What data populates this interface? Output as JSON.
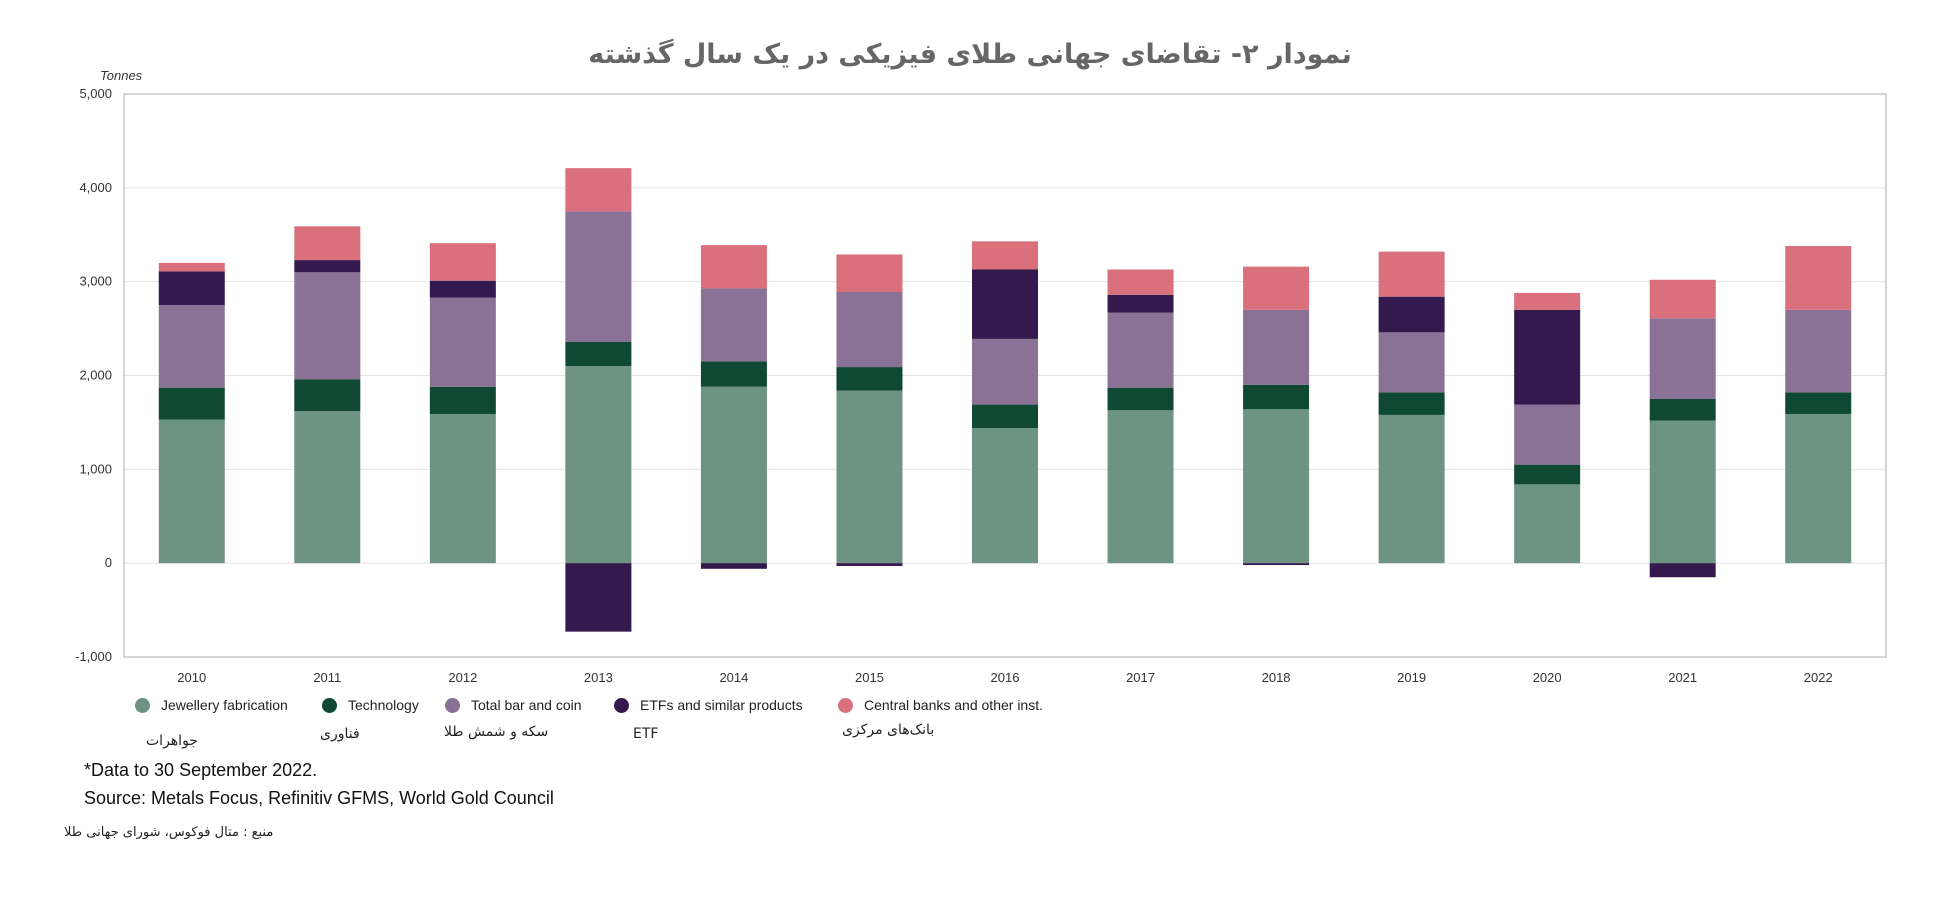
{
  "colors": {
    "jewellery": "#6d9383",
    "technology": "#0f4833",
    "bar_coin": "#8a7196",
    "etf": "#33194d",
    "central_banks": "#d9707c",
    "grid": "#e4e4e4",
    "axis": "#bbbbbb"
  },
  "chart_data": {
    "type": "bar",
    "stacked": true,
    "title": "نمودار ۲- تقاضای جهانی طلای فیزیکی در یک سال گذشته",
    "ylabel": "Tonnes",
    "ylim": [
      -1000,
      5000
    ],
    "yticks": [
      5000,
      4000,
      3000,
      2000,
      1000,
      0,
      -1000
    ],
    "ytick_labels": [
      "5,000",
      "4,000",
      "3,000",
      "2,000",
      "1,000",
      "0",
      "-1,000"
    ],
    "grid": true,
    "legend_position": "bottom-left",
    "categories": [
      "2010",
      "2011",
      "2012",
      "2013",
      "2014",
      "2015",
      "2016",
      "2017",
      "2018",
      "2019",
      "2020",
      "2021",
      "2022"
    ],
    "series": [
      {
        "key": "jewellery",
        "name": "Jewellery fabrication",
        "name_fa": "جواهرات",
        "values": [
          1530,
          1620,
          1590,
          2100,
          1880,
          1840,
          1440,
          1630,
          1640,
          1580,
          840,
          1520,
          1590
        ]
      },
      {
        "key": "technology",
        "name": "Technology",
        "name_fa": "فناوری",
        "values": [
          340,
          340,
          290,
          260,
          270,
          250,
          250,
          240,
          260,
          240,
          210,
          230,
          230
        ]
      },
      {
        "key": "bar_coin",
        "name": "Total bar and coin",
        "name_fa": "سکه و شمش طلا",
        "values": [
          880,
          1140,
          950,
          1390,
          780,
          800,
          700,
          800,
          800,
          640,
          640,
          860,
          880
        ]
      },
      {
        "key": "etf",
        "name": "ETFs and similar products",
        "name_fa": "ETF",
        "values": [
          360,
          130,
          180,
          -730,
          -60,
          -30,
          740,
          190,
          -20,
          380,
          1010,
          -150,
          0
        ]
      },
      {
        "key": "central_banks",
        "name": "Central banks and other inst.",
        "name_fa": "بانک‌های مرکزی",
        "values": [
          90,
          360,
          400,
          460,
          460,
          400,
          300,
          270,
          460,
          480,
          180,
          410,
          680
        ]
      }
    ]
  },
  "footnote": "*Data to 30 September 2022.",
  "source": "Source: Metals Focus, Refinitiv GFMS, World Gold Council",
  "source_fa": "منبع : متال فوکوس، شورای جهانی طلا"
}
